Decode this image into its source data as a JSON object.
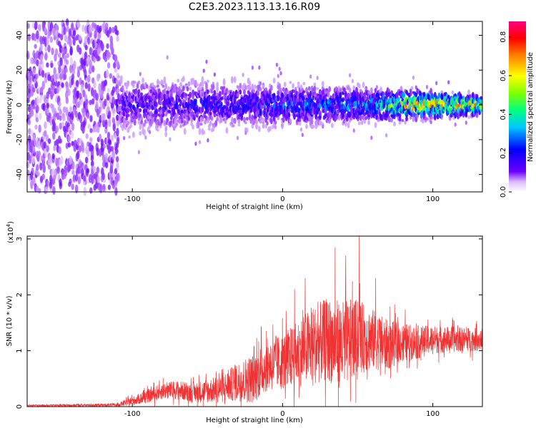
{
  "figure_title": "C2E3.2023.113.13.16.R09",
  "chart_data": [
    {
      "type": "heatmap",
      "xlabel": "Height of straight line (km)",
      "ylabel": "Frequency (Hz)",
      "xlim": [
        -170,
        133
      ],
      "ylim": [
        -50,
        48
      ],
      "xticks": [
        -100,
        0,
        100
      ],
      "yticks": [
        -40,
        -20,
        0,
        20,
        40
      ],
      "colorbar": {
        "label": "Normalized spectral amplitude",
        "range": [
          0.0,
          0.88
        ],
        "ticks": [
          0.0,
          0.2,
          0.4,
          0.6,
          0.8
        ],
        "tick_labels": [
          "0.0",
          "0.2",
          "0.4",
          "0.6",
          "0.8"
        ],
        "colormap": [
          "#ffffff",
          "#6a00ff",
          "#0000ff",
          "#00c8ff",
          "#00ff80",
          "#7fff00",
          "#ffff00",
          "#ff8000",
          "#ff0000",
          "#ff0080"
        ]
      },
      "description_points": [
        {
          "x_range": [
            -170,
            -110
          ],
          "freq_spread": 48,
          "amplitude": 0.05
        },
        {
          "x_range": [
            -110,
            -20
          ],
          "freq_spread": 12,
          "amplitude": 0.25
        },
        {
          "x_range": [
            -20,
            60
          ],
          "freq_spread": 10,
          "amplitude": 0.35
        },
        {
          "x_range": [
            60,
            133
          ],
          "freq_spread": 5,
          "amplitude": 0.8
        }
      ]
    },
    {
      "type": "line",
      "xlabel": "Height of straight line (km)",
      "ylabel": "SNR (10 * v/v)",
      "y_multiplier": "(x10",
      "y_multiplier_exp": "4",
      "y_multiplier_close": ")",
      "xlim": [
        -170,
        133
      ],
      "ylim": [
        0,
        3.05
      ],
      "xticks": [
        -100,
        0,
        100
      ],
      "yticks": [
        0,
        1,
        2,
        3
      ],
      "color": "#f03232",
      "envelope": {
        "x": [
          -170,
          -110,
          -100,
          -90,
          -80,
          -70,
          -60,
          -50,
          -40,
          -30,
          -20,
          -10,
          0,
          10,
          20,
          30,
          40,
          50,
          60,
          70,
          80,
          90,
          100,
          110,
          120,
          133
        ],
        "y": [
          0.02,
          0.03,
          0.1,
          0.18,
          0.28,
          0.3,
          0.25,
          0.28,
          0.32,
          0.45,
          0.5,
          0.75,
          0.8,
          0.95,
          1.1,
          1.2,
          1.1,
          1.25,
          1.2,
          1.1,
          1.15,
          1.15,
          1.2,
          1.2,
          1.2,
          1.2
        ]
      },
      "noise_amplitude": {
        "x": [
          -170,
          -110,
          -100,
          -80,
          -60,
          -40,
          -20,
          0,
          20,
          40,
          60,
          80,
          100,
          133
        ],
        "y": [
          0.01,
          0.03,
          0.08,
          0.15,
          0.18,
          0.25,
          0.45,
          0.5,
          0.7,
          0.8,
          0.55,
          0.35,
          0.25,
          0.2
        ]
      },
      "peaks": [
        {
          "x": 51,
          "y": 3.05
        },
        {
          "x": 35,
          "y": 2.85
        },
        {
          "x": 42,
          "y": 2.7
        },
        {
          "x": 15,
          "y": 2.3
        },
        {
          "x": 8,
          "y": 2.1
        },
        {
          "x": 62,
          "y": 2.3
        }
      ]
    }
  ]
}
